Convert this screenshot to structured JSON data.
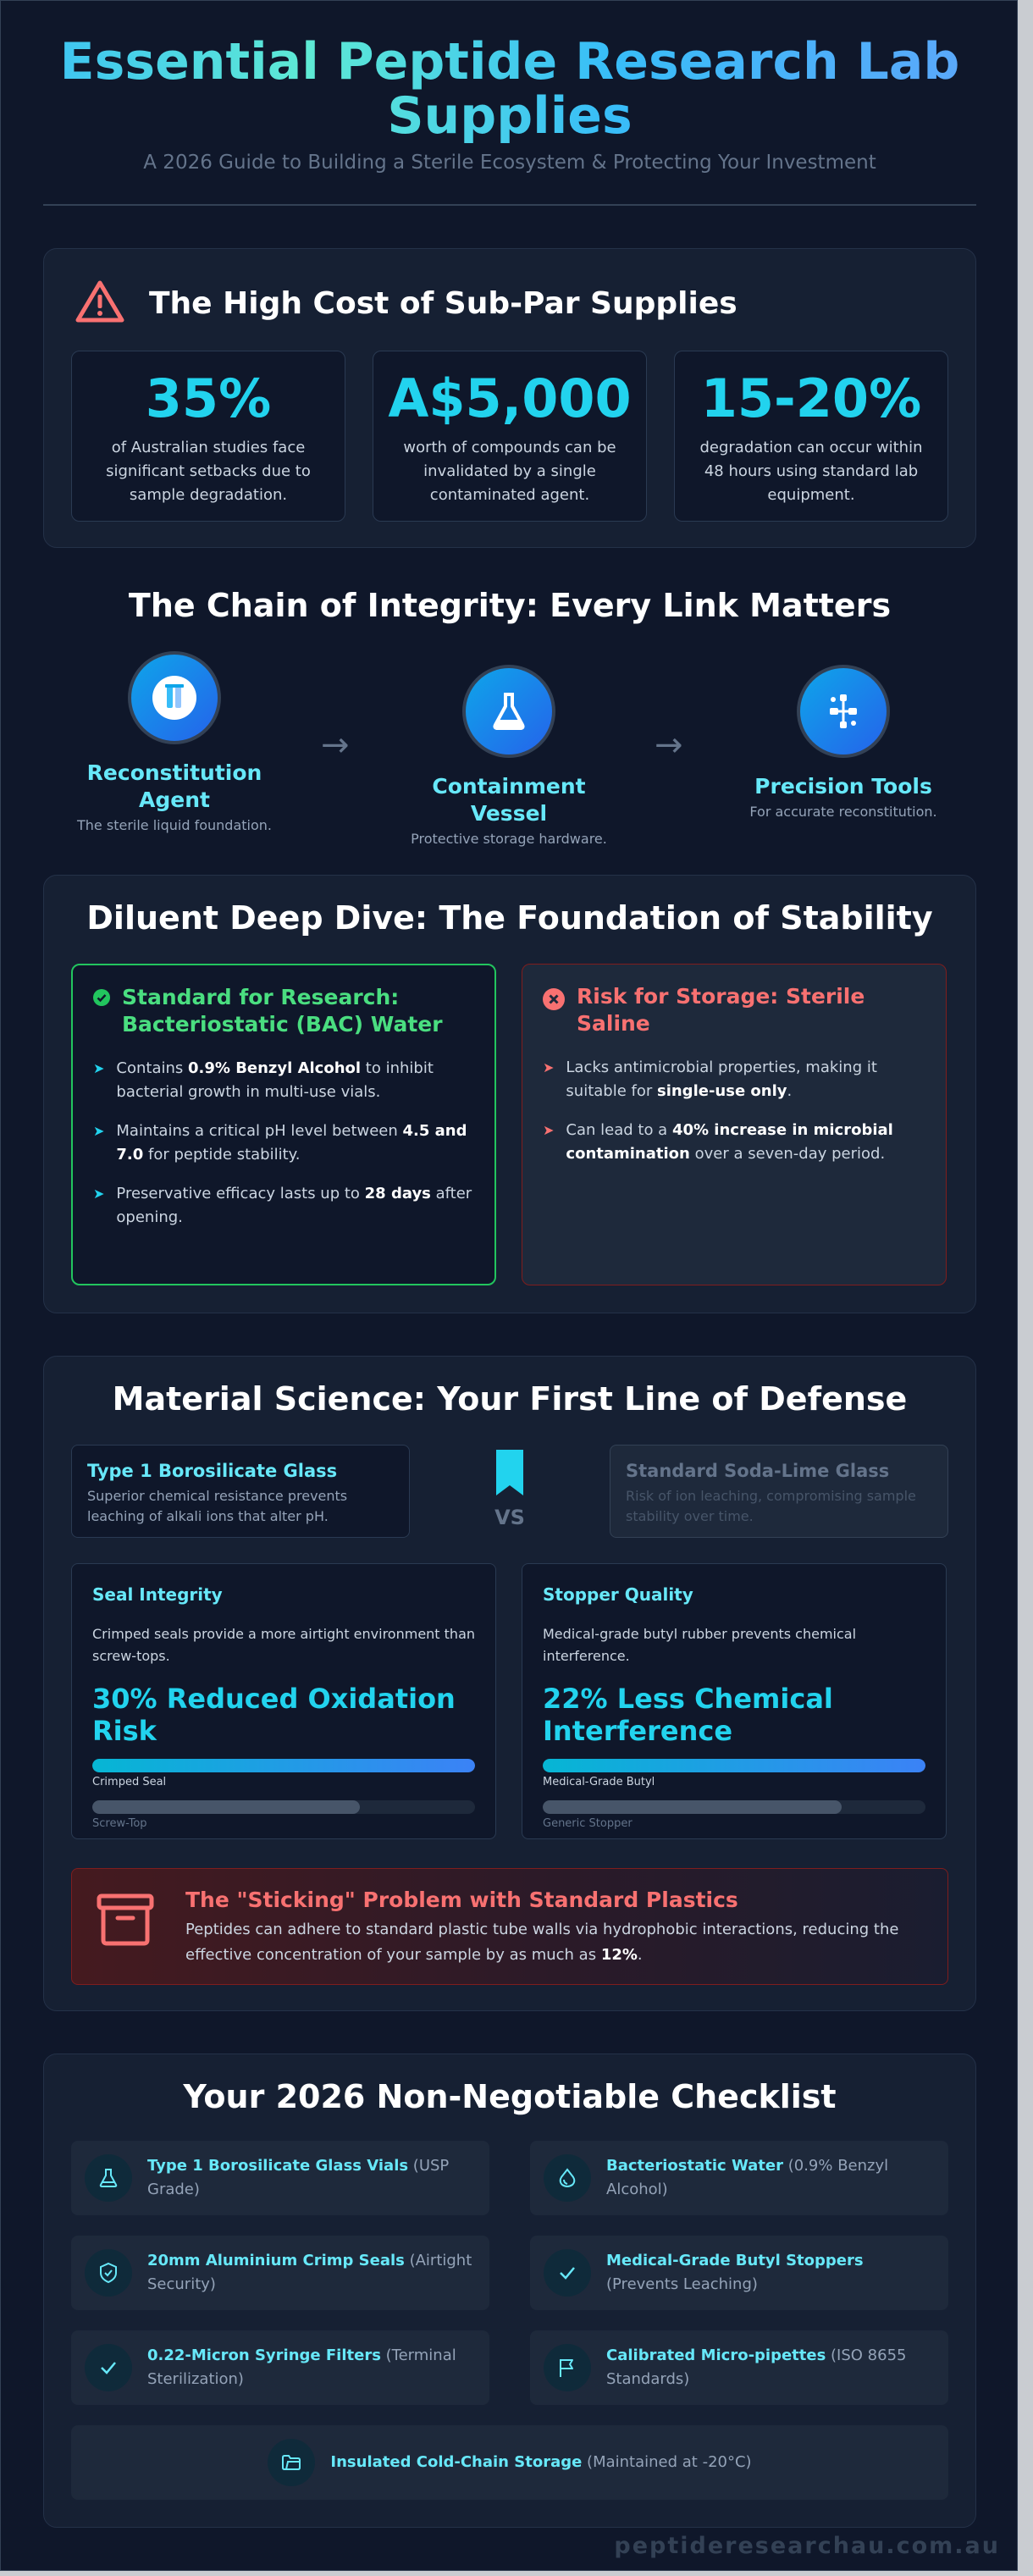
{
  "header": {
    "title": "Essential Peptide Research Lab Supplies",
    "subtitle": "A 2026 Guide to Building a Sterile Ecosystem & Protecting Your Investment"
  },
  "cost": {
    "title": "The High Cost of Sub-Par Supplies",
    "stats": [
      {
        "value": "35%",
        "desc": "of Australian studies face significant setbacks due to sample degradation."
      },
      {
        "value": "A$5,000",
        "desc": "worth of compounds can be invalidated by a single contaminated agent."
      },
      {
        "value": "15-20%",
        "desc": "degradation can occur within 48 hours using standard lab equipment."
      }
    ]
  },
  "chain": {
    "title": "The Chain of Integrity: Every Link Matters",
    "nodes": [
      {
        "label": "Reconstitution Agent",
        "sub": "The sterile liquid foundation.",
        "icon": "vial-icon"
      },
      {
        "label": "Containment Vessel",
        "sub": "Protective storage hardware.",
        "icon": "flask-icon"
      },
      {
        "label": "Precision Tools",
        "sub": "For accurate reconstitution.",
        "icon": "tools-icon"
      }
    ],
    "arrow": "→"
  },
  "diluent": {
    "title": "Diluent Deep Dive: The Foundation of Stability",
    "good": {
      "title": "Standard for Research: Bacteriostatic (BAC) Water",
      "items": [
        {
          "pre": "Contains ",
          "bold": "0.9% Benzyl Alcohol",
          "post": " to inhibit bacterial growth in multi-use vials."
        },
        {
          "pre": "Maintains a critical pH level between ",
          "bold": "4.5 and 7.0",
          "post": " for peptide stability."
        },
        {
          "pre": "Preservative efficacy lasts up to ",
          "bold": "28 days",
          "post": " after opening."
        }
      ]
    },
    "bad": {
      "title": "Risk for Storage: Sterile Saline",
      "items": [
        {
          "pre": "Lacks antimicrobial properties, making it suitable for ",
          "bold": "single-use only",
          "post": "."
        },
        {
          "pre": "Can lead to a ",
          "bold": "40% increase in microbial contamination",
          "post": " over a seven-day period."
        }
      ]
    }
  },
  "material": {
    "title": "Material Science: Your First Line of Defense",
    "glass_good": {
      "title": "Type 1 Borosilicate Glass",
      "desc": "Superior chemical resistance prevents leaching of alkali ions that alter pH."
    },
    "vs": "VS",
    "glass_bad": {
      "title": "Standard Soda-Lime Glass",
      "desc": "Risk of ion leaching, compromising sample stability over time."
    },
    "panels": [
      {
        "title": "Seal Integrity",
        "desc": "Crimped seals provide a more airtight environment than screw-tops.",
        "big": "30% Reduced Oxidation Risk",
        "bar1_label": "Crimped Seal",
        "bar1_value": 100,
        "bar2_label": "Screw-Top",
        "bar2_value": 70
      },
      {
        "title": "Stopper Quality",
        "desc": "Medical-grade butyl rubber prevents chemical interference.",
        "big": "22% Less Chemical Interference",
        "bar1_label": "Medical-Grade Butyl",
        "bar1_value": 100,
        "bar2_label": "Generic Stopper",
        "bar2_value": 78
      }
    ],
    "sticking": {
      "title": "The \"Sticking\" Problem with Standard Plastics",
      "text": "Peptides can adhere to standard plastic tube walls via hydrophobic interactions, reducing the effective concentration of your sample by as much as ",
      "bold": "12%",
      "end": "."
    }
  },
  "checklist": {
    "title": "Your 2026 Non-Negotiable Checklist",
    "items": [
      {
        "name": "Type 1 Borosilicate Glass Vials",
        "note": " (USP Grade)",
        "icon": "flask-icon"
      },
      {
        "name": "Bacteriostatic Water",
        "note": " (0.9% Benzyl Alcohol)",
        "icon": "droplet-icon"
      },
      {
        "name": "20mm Aluminium Crimp Seals",
        "note": " (Airtight Security)",
        "icon": "shield-icon"
      },
      {
        "name": "Medical-Grade Butyl Stoppers",
        "note": " (Prevents Leaching)",
        "icon": "check-icon"
      },
      {
        "name": "0.22-Micron Syringe Filters",
        "note": " (Terminal Sterilization)",
        "icon": "check-icon"
      },
      {
        "name": "Calibrated Micro-pipettes",
        "note": " (ISO 8655 Standards)",
        "icon": "flag-icon"
      },
      {
        "name": "Insulated Cold-Chain Storage",
        "note": " (Maintained at -20°C)",
        "icon": "folder-icon"
      }
    ]
  },
  "footer": "peptideresearchau.com.au",
  "colors": {
    "accent": "#22d3ee",
    "good": "#4ade80",
    "bad": "#f87171",
    "background": "#0f172a"
  }
}
